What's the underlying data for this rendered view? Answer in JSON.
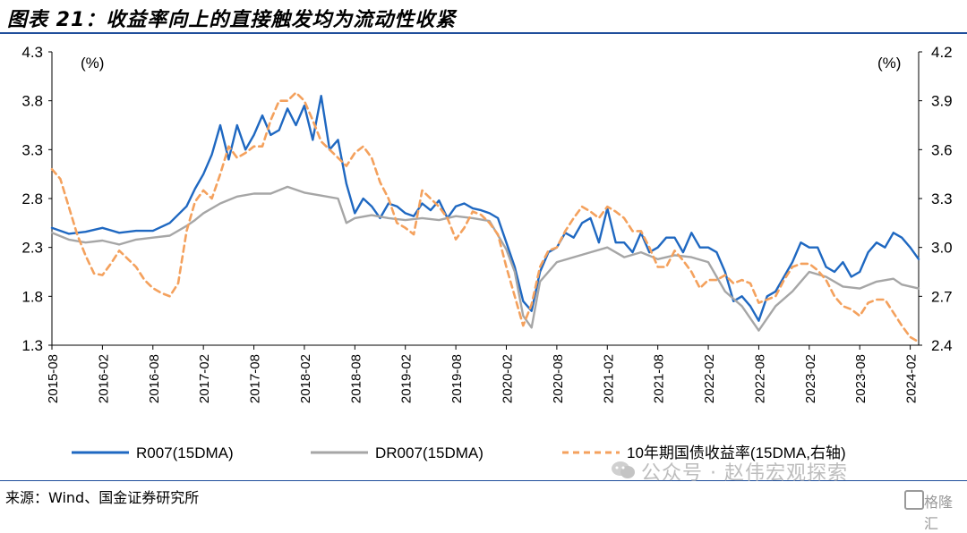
{
  "title": "图表 21：收益率向上的直接触发均为流动性收紧",
  "source": "来源：Wind、国金证券研究所",
  "watermark": "公众号 · 赵伟宏观探索",
  "logo_text": "格隆汇",
  "chart_data": {
    "type": "line",
    "left_unit": "(%)",
    "right_unit": "(%)",
    "x_range": [
      "2015-08",
      "2024-03"
    ],
    "x_ticks": [
      "2015-08",
      "2016-02",
      "2016-08",
      "2017-02",
      "2017-08",
      "2018-02",
      "2018-08",
      "2019-02",
      "2019-08",
      "2020-02",
      "2020-08",
      "2021-02",
      "2021-08",
      "2022-02",
      "2022-08",
      "2023-02",
      "2023-08",
      "2024-02"
    ],
    "y_left": {
      "min": 1.3,
      "max": 4.3,
      "ticks": [
        1.3,
        1.8,
        2.3,
        2.8,
        3.3,
        3.8,
        4.3
      ]
    },
    "y_right": {
      "min": 2.4,
      "max": 4.2,
      "ticks": [
        2.4,
        2.7,
        3.0,
        3.3,
        3.6,
        3.9,
        4.2
      ]
    },
    "grid": false,
    "legend_position": "bottom",
    "colors": {
      "r007": "#1f68c1",
      "dr007": "#a6a6a6",
      "bond10y": "#f4a15d"
    },
    "series": [
      {
        "name": "R007(15DMA)",
        "axis": "left",
        "style": "solid",
        "points": [
          [
            "2015-08",
            2.5
          ],
          [
            "2015-10",
            2.44
          ],
          [
            "2015-12",
            2.46
          ],
          [
            "2016-02",
            2.5
          ],
          [
            "2016-04",
            2.45
          ],
          [
            "2016-06",
            2.47
          ],
          [
            "2016-08",
            2.47
          ],
          [
            "2016-10",
            2.55
          ],
          [
            "2016-12",
            2.72
          ],
          [
            "2017-01",
            2.9
          ],
          [
            "2017-02",
            3.05
          ],
          [
            "2017-03",
            3.25
          ],
          [
            "2017-04",
            3.55
          ],
          [
            "2017-05",
            3.2
          ],
          [
            "2017-06",
            3.55
          ],
          [
            "2017-07",
            3.3
          ],
          [
            "2017-08",
            3.45
          ],
          [
            "2017-09",
            3.65
          ],
          [
            "2017-10",
            3.45
          ],
          [
            "2017-11",
            3.5
          ],
          [
            "2017-12",
            3.72
          ],
          [
            "2018-01",
            3.55
          ],
          [
            "2018-02",
            3.75
          ],
          [
            "2018-03",
            3.4
          ],
          [
            "2018-04",
            3.85
          ],
          [
            "2018-05",
            3.3
          ],
          [
            "2018-06",
            3.4
          ],
          [
            "2018-07",
            2.95
          ],
          [
            "2018-08",
            2.65
          ],
          [
            "2018-09",
            2.8
          ],
          [
            "2018-10",
            2.72
          ],
          [
            "2018-11",
            2.6
          ],
          [
            "2018-12",
            2.75
          ],
          [
            "2019-01",
            2.72
          ],
          [
            "2019-02",
            2.65
          ],
          [
            "2019-03",
            2.62
          ],
          [
            "2019-04",
            2.75
          ],
          [
            "2019-05",
            2.68
          ],
          [
            "2019-06",
            2.78
          ],
          [
            "2019-07",
            2.6
          ],
          [
            "2019-08",
            2.72
          ],
          [
            "2019-09",
            2.75
          ],
          [
            "2019-10",
            2.7
          ],
          [
            "2019-11",
            2.68
          ],
          [
            "2019-12",
            2.65
          ],
          [
            "2020-01",
            2.6
          ],
          [
            "2020-02",
            2.35
          ],
          [
            "2020-03",
            2.1
          ],
          [
            "2020-04",
            1.75
          ],
          [
            "2020-05",
            1.65
          ],
          [
            "2020-06",
            2.05
          ],
          [
            "2020-07",
            2.25
          ],
          [
            "2020-08",
            2.3
          ],
          [
            "2020-09",
            2.45
          ],
          [
            "2020-10",
            2.4
          ],
          [
            "2020-11",
            2.55
          ],
          [
            "2020-12",
            2.6
          ],
          [
            "2021-01",
            2.35
          ],
          [
            "2021-02",
            2.7
          ],
          [
            "2021-03",
            2.35
          ],
          [
            "2021-04",
            2.35
          ],
          [
            "2021-05",
            2.25
          ],
          [
            "2021-06",
            2.45
          ],
          [
            "2021-07",
            2.25
          ],
          [
            "2021-08",
            2.3
          ],
          [
            "2021-09",
            2.4
          ],
          [
            "2021-10",
            2.4
          ],
          [
            "2021-11",
            2.25
          ],
          [
            "2021-12",
            2.45
          ],
          [
            "2022-01",
            2.3
          ],
          [
            "2022-02",
            2.3
          ],
          [
            "2022-03",
            2.25
          ],
          [
            "2022-04",
            2.05
          ],
          [
            "2022-05",
            1.75
          ],
          [
            "2022-06",
            1.8
          ],
          [
            "2022-07",
            1.7
          ],
          [
            "2022-08",
            1.55
          ],
          [
            "2022-09",
            1.8
          ],
          [
            "2022-10",
            1.85
          ],
          [
            "2022-11",
            2.0
          ],
          [
            "2022-12",
            2.15
          ],
          [
            "2023-01",
            2.35
          ],
          [
            "2023-02",
            2.3
          ],
          [
            "2023-03",
            2.3
          ],
          [
            "2023-04",
            2.1
          ],
          [
            "2023-05",
            2.05
          ],
          [
            "2023-06",
            2.15
          ],
          [
            "2023-07",
            2.0
          ],
          [
            "2023-08",
            2.05
          ],
          [
            "2023-09",
            2.25
          ],
          [
            "2023-10",
            2.35
          ],
          [
            "2023-11",
            2.3
          ],
          [
            "2023-12",
            2.45
          ],
          [
            "2024-01",
            2.4
          ],
          [
            "2024-02",
            2.3
          ],
          [
            "2024-03",
            2.18
          ]
        ]
      },
      {
        "name": "DR007(15DMA)",
        "axis": "left",
        "style": "solid",
        "points": [
          [
            "2015-08",
            2.45
          ],
          [
            "2015-10",
            2.38
          ],
          [
            "2015-12",
            2.35
          ],
          [
            "2016-02",
            2.37
          ],
          [
            "2016-04",
            2.33
          ],
          [
            "2016-06",
            2.38
          ],
          [
            "2016-08",
            2.4
          ],
          [
            "2016-10",
            2.42
          ],
          [
            "2016-12",
            2.52
          ],
          [
            "2017-01",
            2.58
          ],
          [
            "2017-02",
            2.65
          ],
          [
            "2017-04",
            2.75
          ],
          [
            "2017-06",
            2.82
          ],
          [
            "2017-08",
            2.85
          ],
          [
            "2017-10",
            2.85
          ],
          [
            "2017-12",
            2.92
          ],
          [
            "2018-02",
            2.86
          ],
          [
            "2018-04",
            2.83
          ],
          [
            "2018-06",
            2.8
          ],
          [
            "2018-07",
            2.55
          ],
          [
            "2018-08",
            2.6
          ],
          [
            "2018-10",
            2.63
          ],
          [
            "2018-12",
            2.6
          ],
          [
            "2019-02",
            2.58
          ],
          [
            "2019-04",
            2.6
          ],
          [
            "2019-06",
            2.58
          ],
          [
            "2019-08",
            2.62
          ],
          [
            "2019-10",
            2.6
          ],
          [
            "2019-12",
            2.57
          ],
          [
            "2020-02",
            2.28
          ],
          [
            "2020-03",
            2.05
          ],
          [
            "2020-04",
            1.6
          ],
          [
            "2020-05",
            1.48
          ],
          [
            "2020-06",
            1.95
          ],
          [
            "2020-08",
            2.15
          ],
          [
            "2020-10",
            2.2
          ],
          [
            "2020-12",
            2.25
          ],
          [
            "2021-02",
            2.3
          ],
          [
            "2021-04",
            2.2
          ],
          [
            "2021-06",
            2.25
          ],
          [
            "2021-08",
            2.18
          ],
          [
            "2021-10",
            2.22
          ],
          [
            "2021-12",
            2.2
          ],
          [
            "2022-02",
            2.15
          ],
          [
            "2022-04",
            1.85
          ],
          [
            "2022-06",
            1.7
          ],
          [
            "2022-08",
            1.45
          ],
          [
            "2022-10",
            1.7
          ],
          [
            "2022-12",
            1.85
          ],
          [
            "2023-02",
            2.05
          ],
          [
            "2023-04",
            2.0
          ],
          [
            "2023-06",
            1.9
          ],
          [
            "2023-08",
            1.88
          ],
          [
            "2023-10",
            1.95
          ],
          [
            "2023-12",
            1.98
          ],
          [
            "2024-01",
            1.92
          ],
          [
            "2024-03",
            1.88
          ]
        ]
      },
      {
        "name": "10年期国债收益率(15DMA,右轴)",
        "axis": "right",
        "style": "dashed",
        "points": [
          [
            "2015-08",
            3.48
          ],
          [
            "2015-09",
            3.42
          ],
          [
            "2015-10",
            3.25
          ],
          [
            "2015-11",
            3.08
          ],
          [
            "2015-12",
            2.95
          ],
          [
            "2016-01",
            2.84
          ],
          [
            "2016-02",
            2.83
          ],
          [
            "2016-03",
            2.9
          ],
          [
            "2016-04",
            2.98
          ],
          [
            "2016-05",
            2.93
          ],
          [
            "2016-06",
            2.88
          ],
          [
            "2016-07",
            2.8
          ],
          [
            "2016-08",
            2.75
          ],
          [
            "2016-09",
            2.72
          ],
          [
            "2016-10",
            2.7
          ],
          [
            "2016-11",
            2.78
          ],
          [
            "2016-12",
            3.1
          ],
          [
            "2017-01",
            3.28
          ],
          [
            "2017-02",
            3.35
          ],
          [
            "2017-03",
            3.3
          ],
          [
            "2017-04",
            3.45
          ],
          [
            "2017-05",
            3.62
          ],
          [
            "2017-06",
            3.55
          ],
          [
            "2017-07",
            3.58
          ],
          [
            "2017-08",
            3.62
          ],
          [
            "2017-09",
            3.62
          ],
          [
            "2017-10",
            3.78
          ],
          [
            "2017-11",
            3.9
          ],
          [
            "2017-12",
            3.9
          ],
          [
            "2018-01",
            3.95
          ],
          [
            "2018-02",
            3.9
          ],
          [
            "2018-03",
            3.78
          ],
          [
            "2018-04",
            3.65
          ],
          [
            "2018-05",
            3.6
          ],
          [
            "2018-06",
            3.55
          ],
          [
            "2018-07",
            3.5
          ],
          [
            "2018-08",
            3.58
          ],
          [
            "2018-09",
            3.62
          ],
          [
            "2018-10",
            3.55
          ],
          [
            "2018-11",
            3.4
          ],
          [
            "2018-12",
            3.3
          ],
          [
            "2019-01",
            3.15
          ],
          [
            "2019-02",
            3.12
          ],
          [
            "2019-03",
            3.08
          ],
          [
            "2019-04",
            3.35
          ],
          [
            "2019-05",
            3.3
          ],
          [
            "2019-06",
            3.25
          ],
          [
            "2019-07",
            3.18
          ],
          [
            "2019-08",
            3.05
          ],
          [
            "2019-09",
            3.12
          ],
          [
            "2019-10",
            3.22
          ],
          [
            "2019-11",
            3.2
          ],
          [
            "2019-12",
            3.15
          ],
          [
            "2020-01",
            3.08
          ],
          [
            "2020-02",
            2.88
          ],
          [
            "2020-03",
            2.7
          ],
          [
            "2020-04",
            2.52
          ],
          [
            "2020-05",
            2.65
          ],
          [
            "2020-06",
            2.88
          ],
          [
            "2020-07",
            2.98
          ],
          [
            "2020-08",
            3.0
          ],
          [
            "2020-09",
            3.1
          ],
          [
            "2020-10",
            3.18
          ],
          [
            "2020-11",
            3.25
          ],
          [
            "2020-12",
            3.22
          ],
          [
            "2021-01",
            3.18
          ],
          [
            "2021-02",
            3.25
          ],
          [
            "2021-03",
            3.22
          ],
          [
            "2021-04",
            3.18
          ],
          [
            "2021-05",
            3.1
          ],
          [
            "2021-06",
            3.1
          ],
          [
            "2021-07",
            3.0
          ],
          [
            "2021-08",
            2.88
          ],
          [
            "2021-09",
            2.88
          ],
          [
            "2021-10",
            2.98
          ],
          [
            "2021-11",
            2.92
          ],
          [
            "2021-12",
            2.85
          ],
          [
            "2022-01",
            2.75
          ],
          [
            "2022-02",
            2.8
          ],
          [
            "2022-03",
            2.8
          ],
          [
            "2022-04",
            2.83
          ],
          [
            "2022-05",
            2.78
          ],
          [
            "2022-06",
            2.8
          ],
          [
            "2022-07",
            2.78
          ],
          [
            "2022-08",
            2.66
          ],
          [
            "2022-09",
            2.68
          ],
          [
            "2022-10",
            2.7
          ],
          [
            "2022-11",
            2.8
          ],
          [
            "2022-12",
            2.88
          ],
          [
            "2023-01",
            2.9
          ],
          [
            "2023-02",
            2.9
          ],
          [
            "2023-03",
            2.86
          ],
          [
            "2023-04",
            2.8
          ],
          [
            "2023-05",
            2.7
          ],
          [
            "2023-06",
            2.64
          ],
          [
            "2023-07",
            2.62
          ],
          [
            "2023-08",
            2.58
          ],
          [
            "2023-09",
            2.66
          ],
          [
            "2023-10",
            2.68
          ],
          [
            "2023-11",
            2.68
          ],
          [
            "2023-12",
            2.6
          ],
          [
            "2024-01",
            2.52
          ],
          [
            "2024-02",
            2.45
          ],
          [
            "2024-03",
            2.42
          ]
        ]
      }
    ]
  }
}
